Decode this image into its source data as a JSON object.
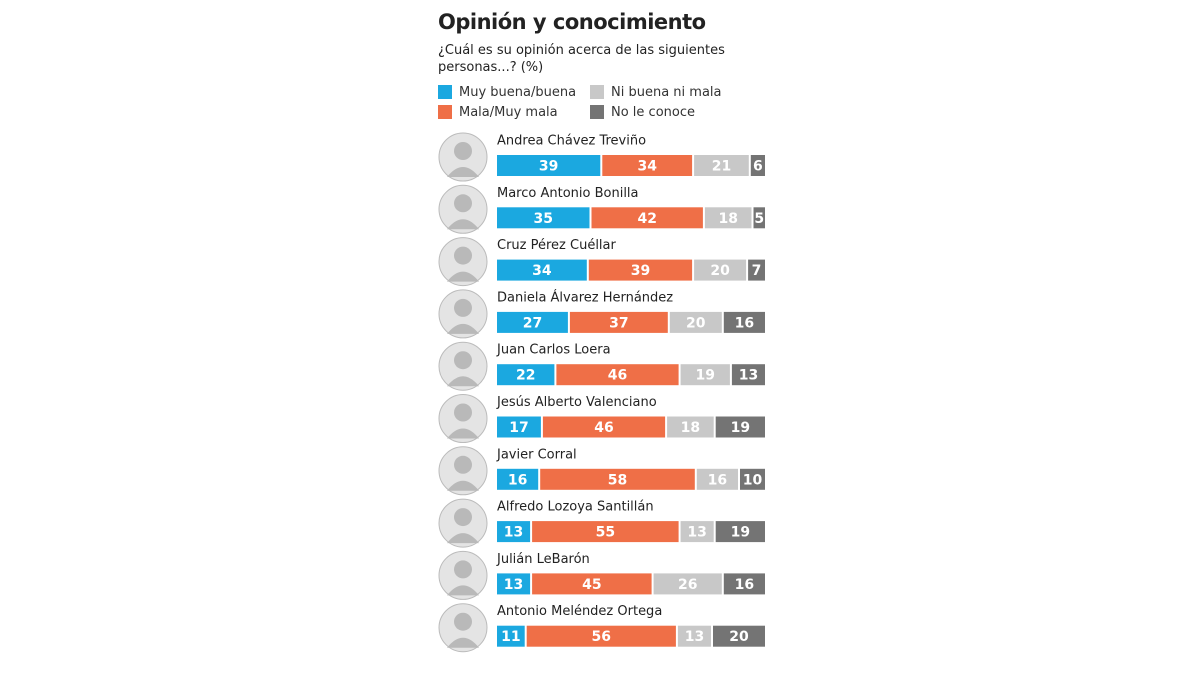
{
  "chart_data": {
    "type": "stacked-bar-horizontal",
    "title": "Opinión y conocimiento",
    "subtitle": "¿Cuál es su opinión acerca de las siguientes personas...? (%)",
    "categories": [
      "Andrea Chávez Treviño",
      "Marco Antonio Bonilla",
      "Cruz Pérez Cuéllar",
      "Daniela Álvarez Hernández",
      "Juan Carlos Loera",
      "Jesús Alberto Valenciano",
      "Javier Corral",
      "Alfredo Lozoya Santillán",
      "Julián LeBarón",
      "Antonio Meléndez Ortega"
    ],
    "series": [
      {
        "name": "Muy buena/buena",
        "color": "#1ba8e0",
        "values": [
          39,
          35,
          34,
          27,
          22,
          17,
          16,
          13,
          13,
          11
        ]
      },
      {
        "name": "Mala/Muy mala",
        "color": "#ef6f47",
        "values": [
          34,
          42,
          39,
          37,
          46,
          46,
          58,
          55,
          45,
          56
        ]
      },
      {
        "name": "Ni buena ni mala",
        "color": "#c8c8c8",
        "values": [
          21,
          18,
          20,
          20,
          19,
          18,
          16,
          13,
          26,
          13
        ]
      },
      {
        "name": "No le conoce",
        "color": "#747474",
        "values": [
          6,
          5,
          7,
          16,
          13,
          19,
          10,
          19,
          16,
          20
        ]
      }
    ],
    "xlim": [
      0,
      100
    ]
  }
}
